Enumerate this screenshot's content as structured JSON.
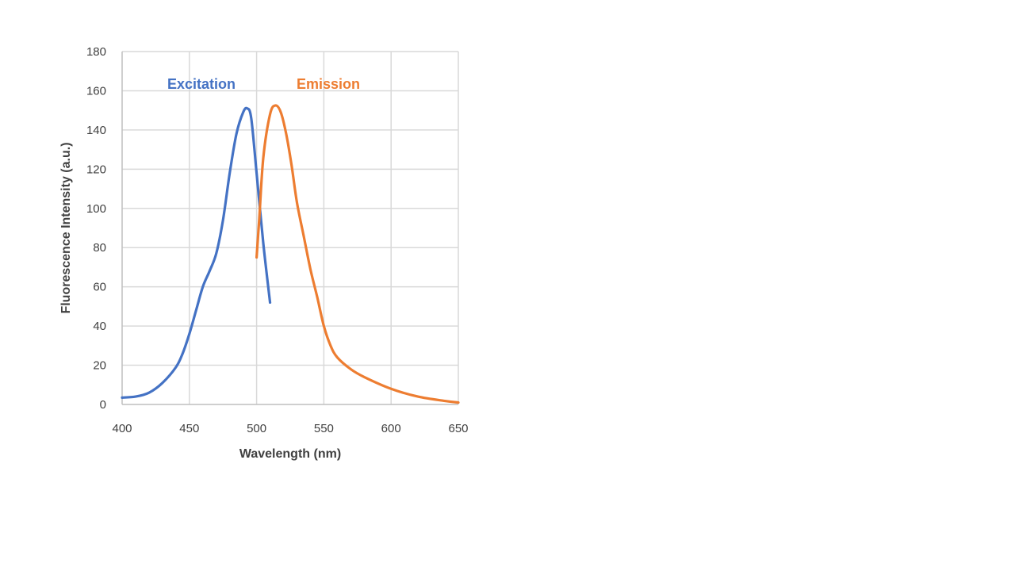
{
  "chart_data": {
    "type": "line",
    "title": "",
    "xlabel": "Wavelength (nm)",
    "ylabel": "Fluorescence Intensity (a.u.)",
    "xlim": [
      400,
      650
    ],
    "ylim": [
      0,
      180
    ],
    "xticks": [
      400,
      450,
      500,
      550,
      600,
      650
    ],
    "yticks": [
      0,
      20,
      40,
      60,
      80,
      100,
      120,
      140,
      160,
      180
    ],
    "grid": true,
    "legend": "inline labels",
    "series": [
      {
        "name": "Excitation",
        "color": "#4472c4",
        "x": [
          400,
          410,
          420,
          430,
          440,
          445,
          450,
          455,
          460,
          465,
          470,
          475,
          480,
          485,
          490,
          493,
          496,
          500,
          505,
          510
        ],
        "y": [
          3.5,
          4,
          6,
          11,
          19,
          26,
          36,
          48,
          60,
          68,
          77,
          94,
          118,
          138,
          149,
          151,
          146,
          118,
          82,
          52
        ]
      },
      {
        "name": "Emission",
        "color": "#ed7d31",
        "x": [
          500,
          502,
          505,
          510,
          514,
          518,
          522,
          526,
          530,
          535,
          540,
          545,
          550,
          555,
          560,
          570,
          580,
          600,
          620,
          640,
          650
        ],
        "y": [
          75,
          95,
          126,
          148,
          152.5,
          149,
          138,
          122,
          103,
          86,
          69,
          55,
          40,
          30,
          24,
          18,
          14,
          8,
          4,
          1.8,
          1
        ]
      }
    ]
  }
}
